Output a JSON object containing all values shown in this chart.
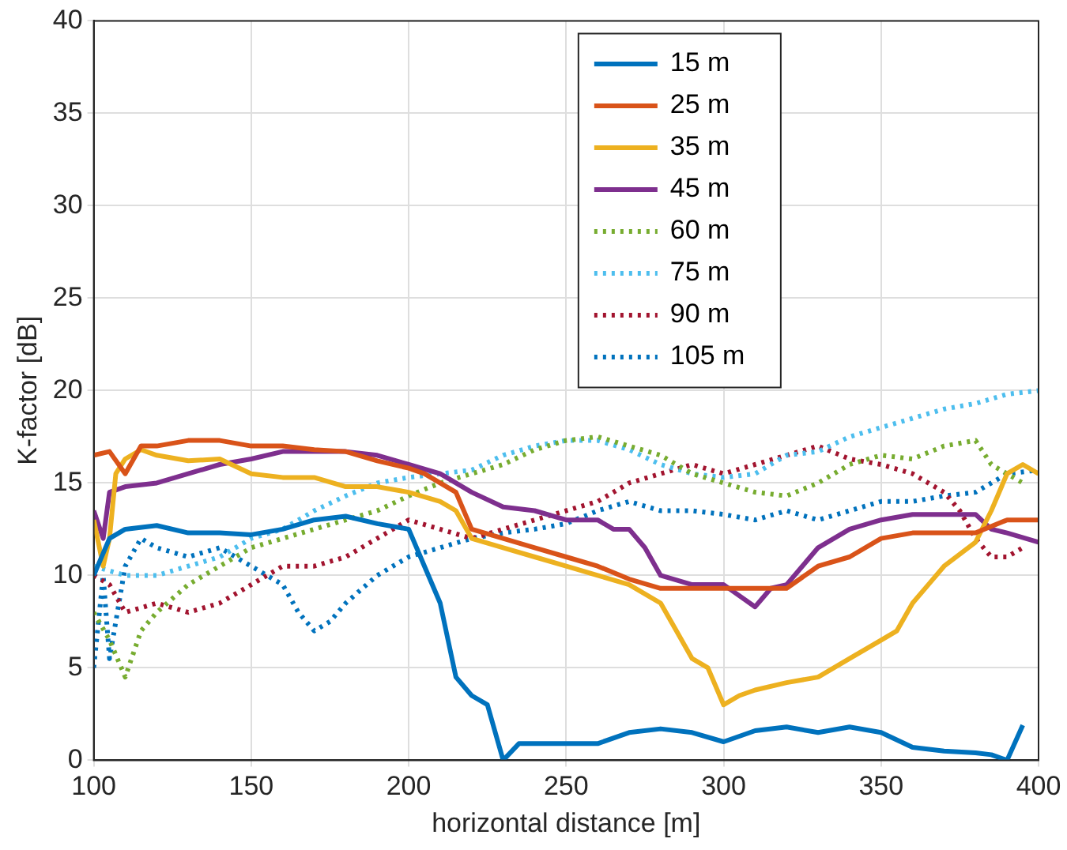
{
  "chart_data": {
    "type": "line",
    "xlabel": "horizontal distance [m]",
    "ylabel": "K-factor [dB]",
    "xlim": [
      100,
      400
    ],
    "xticks": [
      100,
      150,
      200,
      250,
      300,
      350,
      400
    ],
    "ylim": [
      0,
      40
    ],
    "yticks": [
      0,
      5,
      10,
      15,
      20,
      25,
      30,
      35,
      40
    ],
    "grid": true,
    "legend": "top right",
    "series": [
      {
        "name": "15 m",
        "color": "#0072bd",
        "line_style": "solid",
        "x": [
          100,
          105,
          110,
          120,
          130,
          140,
          150,
          160,
          170,
          180,
          190,
          200,
          205,
          210,
          215,
          220,
          225,
          230,
          235,
          250,
          260,
          270,
          280,
          290,
          300,
          310,
          320,
          330,
          340,
          350,
          360,
          370,
          380,
          385,
          390,
          395
        ],
        "values": [
          10,
          12,
          12.5,
          12.7,
          12.3,
          12.3,
          12.2,
          12.5,
          13,
          13.2,
          12.8,
          12.5,
          10.5,
          8.5,
          4.5,
          3.5,
          3,
          0,
          0.9,
          0.9,
          0.9,
          1.5,
          1.7,
          1.5,
          1,
          1.6,
          1.8,
          1.5,
          1.8,
          1.5,
          0.7,
          0.5,
          0.4,
          0.3,
          0,
          1.9
        ]
      },
      {
        "name": "25 m",
        "color": "#d95319",
        "line_style": "solid",
        "x": [
          100,
          105,
          110,
          115,
          120,
          130,
          140,
          150,
          160,
          170,
          180,
          190,
          200,
          205,
          210,
          215,
          220,
          230,
          240,
          250,
          260,
          270,
          280,
          290,
          300,
          310,
          320,
          330,
          340,
          350,
          360,
          370,
          380,
          390,
          400
        ],
        "values": [
          16.5,
          16.7,
          15.5,
          17,
          17,
          17.3,
          17.3,
          17,
          17,
          16.8,
          16.7,
          16.2,
          15.8,
          15.5,
          15,
          14.5,
          12.5,
          12,
          11.5,
          11,
          10.5,
          9.8,
          9.3,
          9.3,
          9.3,
          9.3,
          9.3,
          10.5,
          11,
          12,
          12.3,
          12.3,
          12.3,
          13,
          13
        ]
      },
      {
        "name": "35 m",
        "color": "#edb120",
        "line_style": "solid",
        "x": [
          100,
          103,
          105,
          107,
          110,
          115,
          120,
          130,
          140,
          150,
          160,
          170,
          180,
          190,
          200,
          210,
          215,
          220,
          230,
          240,
          250,
          260,
          270,
          280,
          285,
          290,
          295,
          300,
          305,
          310,
          320,
          330,
          340,
          350,
          355,
          360,
          365,
          370,
          380,
          385,
          390,
          395,
          400
        ],
        "values": [
          13,
          10.5,
          12,
          15.5,
          16.3,
          16.8,
          16.5,
          16.2,
          16.3,
          15.5,
          15.3,
          15.3,
          14.8,
          14.8,
          14.5,
          14,
          13.5,
          12,
          11.5,
          11,
          10.5,
          10,
          9.5,
          8.5,
          7,
          5.5,
          5,
          3,
          3.5,
          3.8,
          4.2,
          4.5,
          5.5,
          6.5,
          7,
          8.5,
          9.5,
          10.5,
          11.8,
          13.5,
          15.5,
          16,
          15.5
        ]
      },
      {
        "name": "45 m",
        "color": "#7e2f8e",
        "line_style": "solid",
        "x": [
          100,
          103,
          105,
          110,
          120,
          130,
          140,
          150,
          160,
          170,
          180,
          190,
          200,
          210,
          220,
          230,
          240,
          250,
          260,
          265,
          270,
          275,
          280,
          290,
          300,
          310,
          315,
          320,
          325,
          330,
          340,
          350,
          360,
          370,
          380,
          385,
          390,
          400
        ],
        "values": [
          13.5,
          12,
          14.5,
          14.8,
          15,
          15.5,
          16,
          16.3,
          16.7,
          16.7,
          16.7,
          16.5,
          16,
          15.5,
          14.5,
          13.7,
          13.5,
          13,
          13,
          12.5,
          12.5,
          11.5,
          10,
          9.5,
          9.5,
          8.3,
          9.3,
          9.5,
          10.5,
          11.5,
          12.5,
          13,
          13.3,
          13.3,
          13.3,
          12.5,
          12.3,
          11.8
        ]
      },
      {
        "name": "60 m",
        "color": "#77ac30",
        "line_style": "dotted",
        "x": [
          100,
          105,
          110,
          115,
          120,
          130,
          140,
          150,
          160,
          170,
          180,
          190,
          200,
          210,
          220,
          230,
          240,
          250,
          260,
          270,
          280,
          290,
          300,
          310,
          320,
          330,
          340,
          350,
          360,
          370,
          380,
          385,
          390,
          395
        ],
        "values": [
          8,
          6.5,
          4.5,
          7,
          8,
          9.5,
          10.5,
          11.5,
          12,
          12.5,
          13,
          13.5,
          14.3,
          15,
          15.5,
          16,
          16.8,
          17.3,
          17.5,
          17,
          16.5,
          15.5,
          15,
          14.5,
          14.3,
          15,
          16,
          16.5,
          16.3,
          17,
          17.3,
          16,
          15.5,
          15
        ]
      },
      {
        "name": "75 m",
        "color": "#4dbeee",
        "line_style": "dotted",
        "x": [
          100,
          110,
          120,
          130,
          140,
          150,
          160,
          170,
          180,
          190,
          200,
          210,
          220,
          230,
          240,
          250,
          260,
          270,
          280,
          290,
          300,
          310,
          320,
          330,
          340,
          350,
          360,
          370,
          380,
          390,
          400
        ],
        "values": [
          10.5,
          10,
          10,
          10.5,
          11,
          12,
          12.5,
          13.5,
          14.3,
          15,
          15.3,
          15.5,
          15.7,
          16.5,
          17,
          17.3,
          17.3,
          16.8,
          16,
          15.5,
          15.3,
          15.5,
          16.5,
          16.7,
          17.5,
          18,
          18.5,
          19,
          19.3,
          19.8,
          20
        ]
      },
      {
        "name": "90 m",
        "color": "#a2142f",
        "line_style": "dotted",
        "x": [
          100,
          105,
          110,
          120,
          130,
          140,
          150,
          160,
          170,
          180,
          190,
          200,
          210,
          220,
          230,
          240,
          250,
          260,
          270,
          280,
          290,
          300,
          310,
          320,
          330,
          340,
          350,
          360,
          370,
          375,
          380,
          385,
          390,
          395
        ],
        "values": [
          10,
          9.5,
          8,
          8.5,
          8,
          8.5,
          9.5,
          10.5,
          10.5,
          11,
          12,
          13,
          12.5,
          12,
          12.5,
          13,
          13.5,
          14,
          15,
          15.5,
          16,
          15.5,
          16,
          16.5,
          17,
          16.3,
          16,
          15.5,
          14.5,
          13.5,
          12,
          11,
          11,
          11.5
        ]
      },
      {
        "name": "105 m",
        "color": "#0072bd",
        "line_style": "dotted",
        "x": [
          100,
          103,
          105,
          110,
          115,
          120,
          130,
          140,
          150,
          160,
          165,
          170,
          175,
          180,
          190,
          200,
          210,
          220,
          230,
          240,
          250,
          260,
          270,
          280,
          290,
          300,
          310,
          320,
          330,
          340,
          350,
          360,
          370,
          380,
          390,
          400
        ],
        "values": [
          5,
          10,
          5.5,
          10.5,
          12,
          11.5,
          11,
          11.5,
          10.5,
          9.5,
          8,
          7,
          7.5,
          8.5,
          10,
          11,
          11.5,
          12,
          12.3,
          12.5,
          12.8,
          13.5,
          14,
          13.5,
          13.5,
          13.3,
          13,
          13.5,
          13,
          13.5,
          14,
          14,
          14.3,
          14.5,
          15.5,
          15.7
        ]
      }
    ]
  }
}
